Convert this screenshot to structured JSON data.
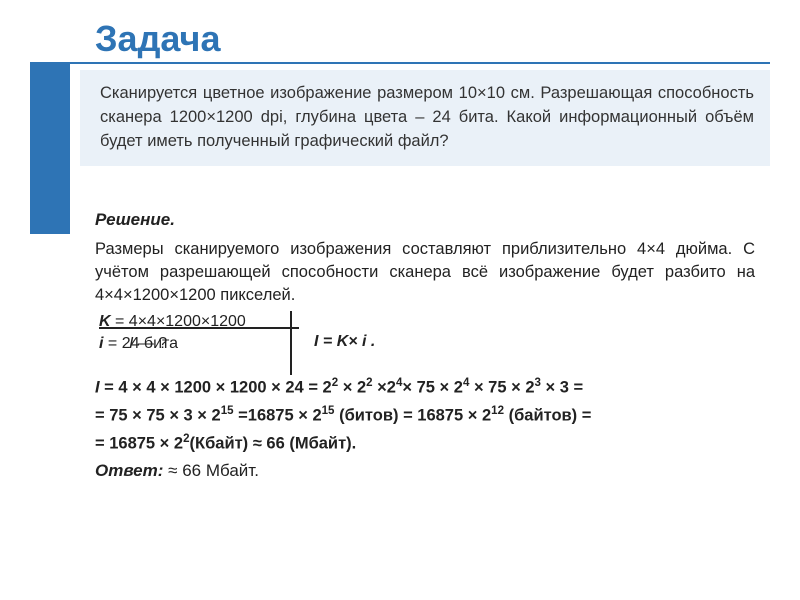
{
  "title": "Задача",
  "colors": {
    "accent": "#2e74b5",
    "box_bg": "#eaf1f8",
    "text": "#222222"
  },
  "problem": "Сканируется цветное изображение размером 10×10 см. Разрешающая способность сканера 1200×1200 dpi, глубина цвета – 24 бита. Какой информационный объём будет иметь полученный графический файл?",
  "solution_label": "Решение.",
  "solution_para": "Размеры сканируемого изображения составляют приблизительно 4×4 дюйма. С учётом разрешающей способности сканера всё изображение будет разбито на 4×4×1200×1200 пикселей.",
  "given": {
    "k_html": "<b><i>K</i></b> = 4×4×1200×1200",
    "i_html": "<b><i>i</i></b> = 24 бита",
    "q_html": "<i>I</i>  — ?",
    "formula_html": "<i>I</i> = K× <i>i</i> ."
  },
  "calc": {
    "l1": "<i>I</i> = 4 × 4 × 1200 × 1200 × 24 = 2<sup>2</sup> × 2<sup>2</sup> ×2<sup>4</sup>× 75 × 2<sup>4</sup> × 75 × 2<sup>3</sup> × 3 =",
    "l2": "= 75 × 75 × 3 × 2<sup>15</sup> =16875 × 2<sup>15</sup> (битов) = 16875 × 2<sup>12</sup> (байтов) =",
    "l3": "= 16875 × 2<sup>2</sup>(Кбайт) ≈ 66 (Мбайт)."
  },
  "answer": {
    "label": "Ответ:",
    "value": " ≈ 66 Мбайт."
  }
}
